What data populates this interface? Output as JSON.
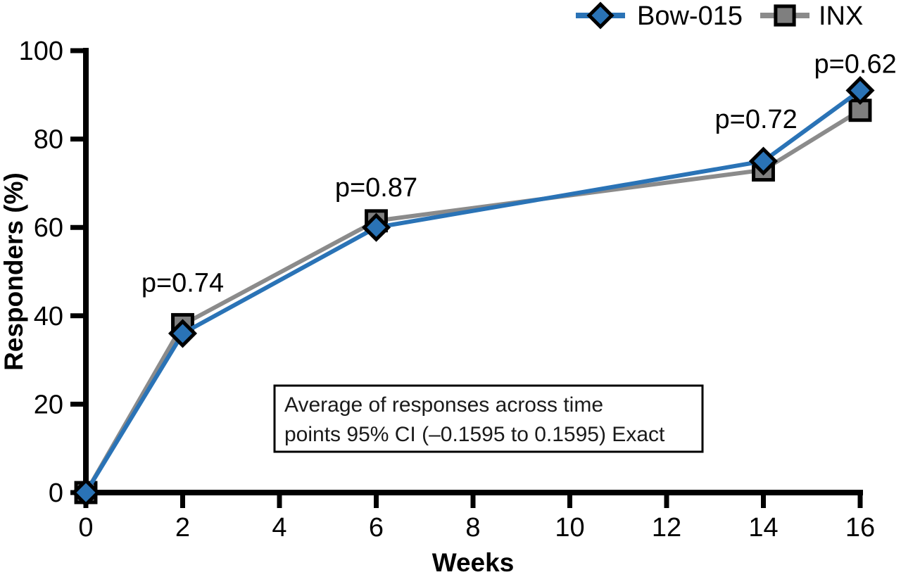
{
  "chart_data": {
    "type": "line",
    "title": "",
    "xlabel": "Weeks",
    "ylabel": "Responders (%)",
    "xlim": [
      0,
      16
    ],
    "ylim": [
      0,
      100
    ],
    "xticks": [
      0,
      2,
      4,
      6,
      8,
      10,
      12,
      14,
      16
    ],
    "yticks": [
      0,
      20,
      40,
      60,
      80,
      100
    ],
    "grid": false,
    "legend_position": "top-right",
    "x": [
      0,
      2,
      6,
      14,
      16
    ],
    "series": [
      {
        "name": "INX",
        "marker": "square",
        "line_color": "#8b8b8b",
        "marker_fill": "#7f7f7f",
        "marker_stroke": "#000000",
        "values": [
          0,
          38,
          61.5,
          73,
          86.5
        ]
      },
      {
        "name": "Bow-015",
        "marker": "diamond",
        "line_color": "#2a73b6",
        "marker_fill": "#2a73b6",
        "marker_stroke": "#000000",
        "values": [
          0,
          36,
          60,
          75,
          91
        ]
      }
    ],
    "legend_order": [
      "Bow-015",
      "INX"
    ],
    "annotations": [
      {
        "text": "p=0.74",
        "x": 2.0,
        "y": 45.5
      },
      {
        "text": "p=0.87",
        "x": 6.0,
        "y": 67
      },
      {
        "text": "p=0.72",
        "x": 13.85,
        "y": 82.5
      },
      {
        "text": "p=0.62",
        "x": 15.9,
        "y": 95
      }
    ],
    "note": {
      "lines": [
        "Average of responses across time",
        "points 95% CI (–0.1595 to 0.1595) Exact"
      ]
    },
    "axis_color": "#000000",
    "background_color": "#ffffff"
  }
}
